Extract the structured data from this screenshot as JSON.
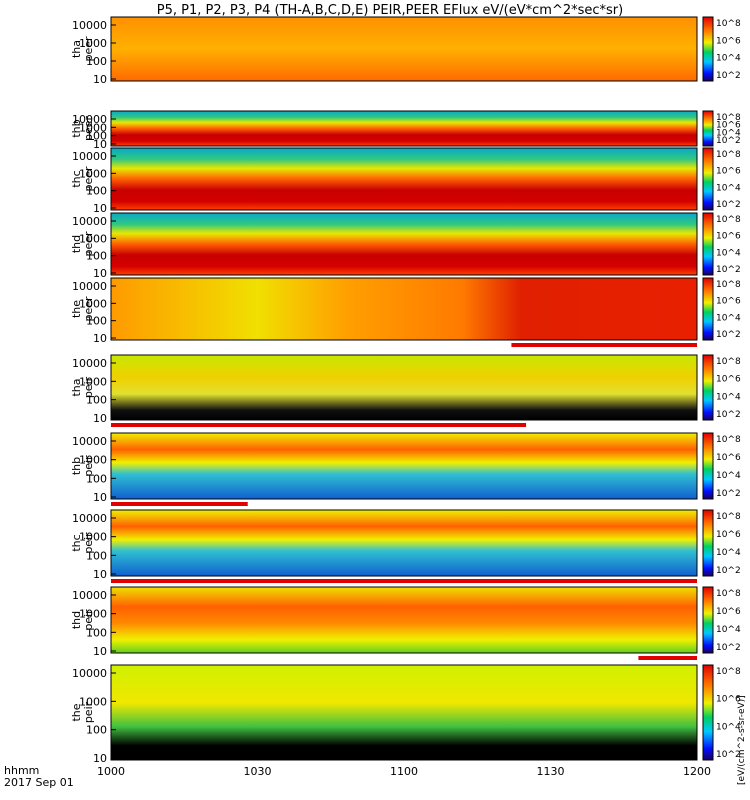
{
  "chart_data": {
    "type": "heatmap",
    "title": "P5, P1, P2, P3, P4 (TH-A,B,C,D,E) PEIR,PEER EFlux eV/(eV*cm^2*sec*sr)",
    "x_axis": {
      "unit_label": "hhmm",
      "date_label": "2017 Sep 01",
      "range": [
        1000,
        1200
      ],
      "ticks": [
        "1000",
        "1030",
        "1100",
        "1130",
        "1200"
      ]
    },
    "colorbar": {
      "label": "[eV/(cm^2-s-sr-eV)]",
      "tick_labels": [
        "10^2",
        "10^4",
        "10^6",
        "10^8"
      ]
    },
    "panels": [
      {
        "label_top": "tha",
        "label_bottom": "peer",
        "y_ticks": [
          "10000",
          "1000",
          "100",
          "10"
        ],
        "bar": null
      },
      {
        "label_top": "thb",
        "label_bottom": "peer",
        "y_ticks": [
          "10000",
          "1000",
          "100",
          "10"
        ],
        "bar": null
      },
      {
        "label_top": "thc",
        "label_bottom": "peer",
        "y_ticks": [
          "10000",
          "1000",
          "100",
          "10"
        ],
        "bar": null
      },
      {
        "label_top": "thd",
        "label_bottom": "peer",
        "y_ticks": [
          "10000",
          "1000",
          "100",
          "10"
        ],
        "bar": null
      },
      {
        "label_top": "the",
        "label_bottom": "peer",
        "y_ticks": [
          "10000",
          "1000",
          "100",
          "10"
        ],
        "bar": {
          "color": "#e00000",
          "from": 1122,
          "to": 1200
        }
      },
      {
        "label_top": "tha",
        "label_bottom": "peir",
        "y_ticks": [
          "10000",
          "1000",
          "100",
          "10"
        ],
        "bar": {
          "color": "#e00000",
          "from": 1000,
          "to": 1125
        }
      },
      {
        "label_top": "thb",
        "label_bottom": "peir",
        "y_ticks": [
          "10000",
          "1000",
          "100",
          "10"
        ],
        "bar": {
          "color": "#e00000",
          "from": 1000,
          "to": 1028
        }
      },
      {
        "label_top": "thc",
        "label_bottom": "peir",
        "y_ticks": [
          "10000",
          "1000",
          "100",
          "10"
        ],
        "bar": {
          "color": "#e00000",
          "from": 1000,
          "to": 1200
        }
      },
      {
        "label_top": "thd",
        "label_bottom": "peir",
        "y_ticks": [
          "10000",
          "1000",
          "100",
          "10"
        ],
        "bar": {
          "color": "#e00000",
          "from": 1148,
          "to": 1200
        }
      },
      {
        "label_top": "the",
        "label_bottom": "peir",
        "y_ticks": [
          "10000",
          "1000",
          "100",
          "10"
        ],
        "bar": null
      }
    ]
  }
}
